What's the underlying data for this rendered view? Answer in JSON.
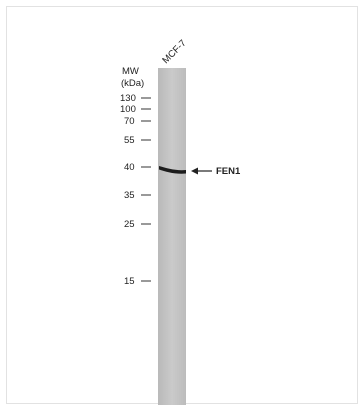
{
  "blot": {
    "lane_label": "MCF-7",
    "mw_title": "MW",
    "mw_unit": "(kDa)",
    "markers": [
      "130",
      "100",
      "70",
      "55",
      "40",
      "35",
      "25",
      "15"
    ],
    "band_label": "FEN1"
  },
  "colors": {
    "lane": "#c4c4c4",
    "band": "#1c1c1c",
    "text": "#222222"
  }
}
